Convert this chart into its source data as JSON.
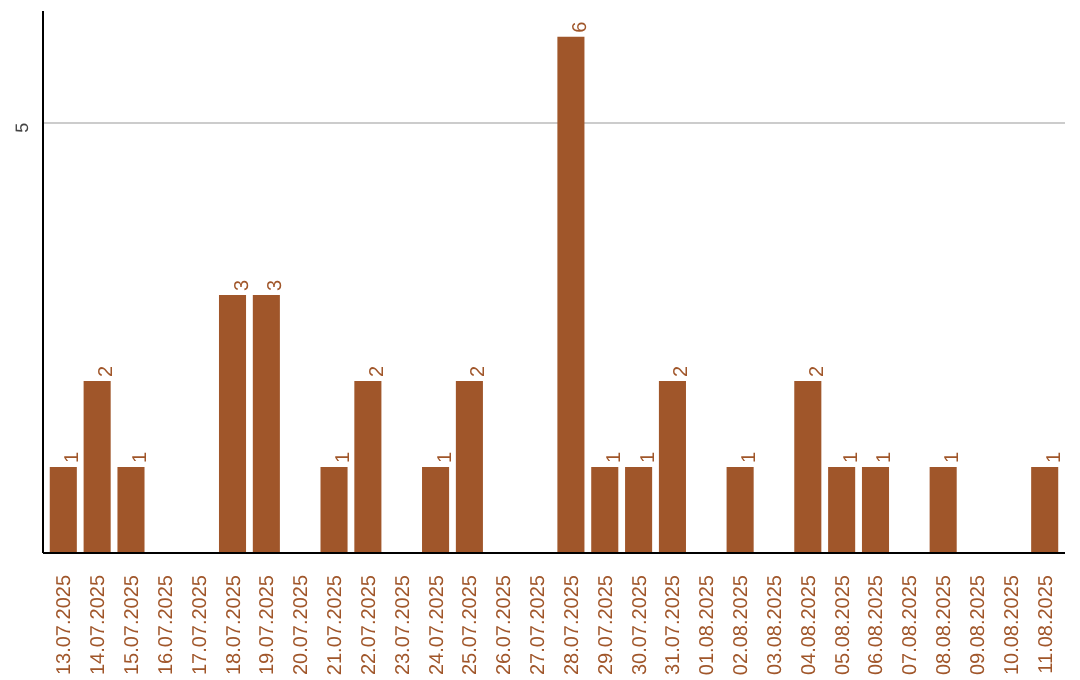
{
  "chart_data": {
    "type": "bar",
    "categories": [
      "13.07.2025",
      "14.07.2025",
      "15.07.2025",
      "16.07.2025",
      "17.07.2025",
      "18.07.2025",
      "19.07.2025",
      "20.07.2025",
      "21.07.2025",
      "22.07.2025",
      "23.07.2025",
      "24.07.2025",
      "25.07.2025",
      "26.07.2025",
      "27.07.2025",
      "28.07.2025",
      "29.07.2025",
      "30.07.2025",
      "31.07.2025",
      "01.08.2025",
      "02.08.2025",
      "03.08.2025",
      "04.08.2025",
      "05.08.2025",
      "06.08.2025",
      "07.08.2025",
      "08.08.2025",
      "09.08.2025",
      "10.08.2025",
      "11.08.2025"
    ],
    "values": [
      1,
      2,
      1,
      0,
      0,
      3,
      3,
      0,
      1,
      2,
      0,
      1,
      2,
      0,
      0,
      6,
      1,
      1,
      2,
      0,
      1,
      0,
      2,
      1,
      1,
      0,
      1,
      0,
      0,
      1
    ],
    "value_labels": [
      "1",
      "2",
      "1",
      null,
      null,
      "3",
      "3",
      null,
      "1",
      "2",
      null,
      "1",
      "2",
      null,
      null,
      "6",
      "1",
      "1",
      "2",
      null,
      "1",
      null,
      "2",
      "1",
      "1",
      null,
      "1",
      null,
      null,
      "1"
    ],
    "color": "#a0562a",
    "ylim": [
      0,
      6.3
    ],
    "yticks": [
      5
    ],
    "grid": "y"
  }
}
